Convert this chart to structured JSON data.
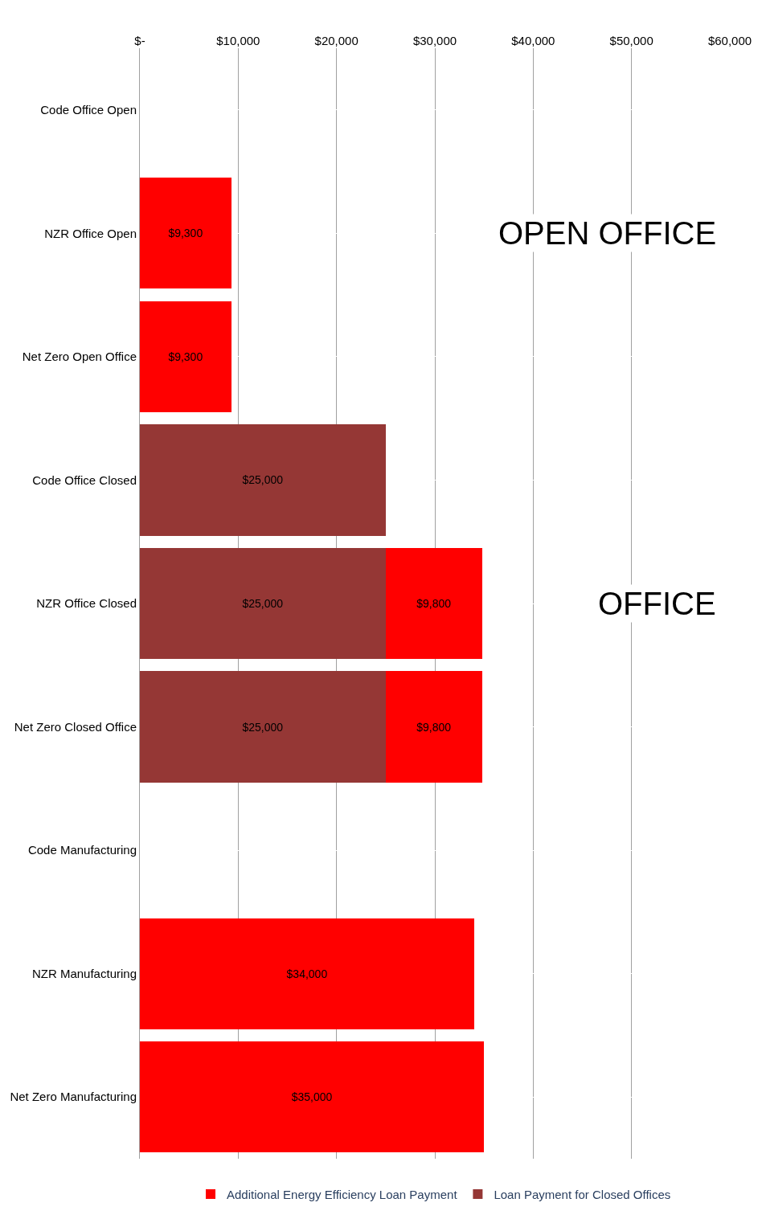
{
  "chart_data": {
    "type": "bar",
    "orientation": "horizontal",
    "stacked": true,
    "categories": [
      "Code Office Open",
      "NZR Office Open",
      "Net Zero Open Office",
      "Code Office Closed",
      "NZR Office Closed",
      "Net Zero Closed Office",
      "Code Manufacturing",
      "NZR Manufacturing",
      "Net Zero Manufacturing"
    ],
    "series": [
      {
        "name": "Loan Payment for Closed Offices",
        "color": "#953735",
        "values": [
          null,
          null,
          null,
          25000,
          25000,
          25000,
          null,
          null,
          null
        ],
        "value_labels": [
          null,
          null,
          null,
          "$25,000",
          "$25,000",
          "$25,000",
          null,
          null,
          null
        ]
      },
      {
        "name": "Additional Energy Efficiency Loan Payment",
        "color": "#ff0000",
        "values": [
          null,
          9300,
          9300,
          null,
          9800,
          9800,
          null,
          34000,
          35000
        ],
        "value_labels": [
          null,
          "$9,300",
          "$9,300",
          null,
          "$9,800",
          "$9,800",
          null,
          "$34,000",
          "$35,000"
        ]
      }
    ],
    "xlim": [
      0,
      60000
    ],
    "xticks": [
      {
        "value": 0,
        "label": "$-"
      },
      {
        "value": 10000,
        "label": "$10,000"
      },
      {
        "value": 20000,
        "label": "$20,000"
      },
      {
        "value": 30000,
        "label": "$30,000"
      },
      {
        "value": 40000,
        "label": "$40,000"
      },
      {
        "value": 50000,
        "label": "$50,000"
      },
      {
        "value": 60000,
        "label": "$60,000"
      }
    ],
    "grid": true,
    "legend": "bottom",
    "annotations": [
      "OPEN OFFICE",
      "OFFICE"
    ]
  }
}
